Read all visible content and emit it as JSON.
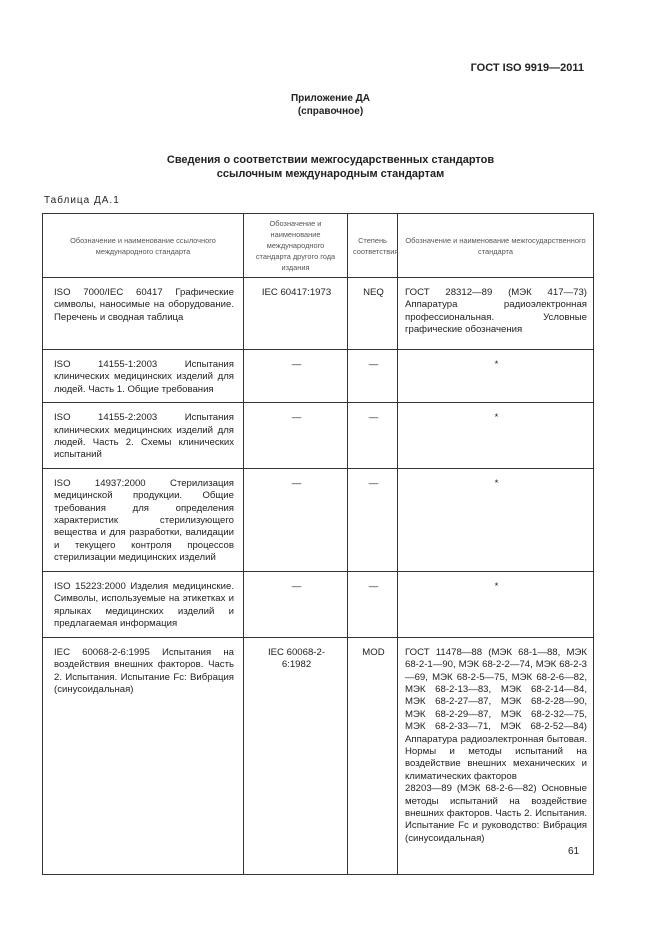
{
  "header": {
    "doc_id": "ГОСТ ISO 9919—2011"
  },
  "annex": {
    "title": "Приложение ДА",
    "subtitle": "(справочное)"
  },
  "title": {
    "line1": "Сведения о соответствии межгосударственных стандартов",
    "line2": "ссылочным международным стандартам"
  },
  "table_caption": "Таблица ДА.1",
  "table": {
    "columns": [
      "Обозначение и наименование ссылочного международного стандарта",
      "Обозначение и наименование международного стандарта другого года издания",
      "Степень соответствия",
      "Обозначение и наименование межгосударственного стандарта"
    ],
    "rows": [
      [
        "ISO 7000/IEC 60417 Графические символы, наносимые на оборудование. Перечень и сводная таблица",
        "IEC 60417:1973",
        "NEQ",
        "ГОСТ 28312—89 (МЭК 417—73) Аппаратура радиоэлектронная профессиональная. Условные графические обозначения"
      ],
      [
        "ISO 14155-1:2003 Испытания клинических медицинских изделий для людей. Часть 1. Общие требования",
        "—",
        "—",
        "*"
      ],
      [
        "ISO 14155-2:2003 Испытания клинических медицинских изделий для людей. Часть 2. Схемы клинических испытаний",
        "—",
        "—",
        "*"
      ],
      [
        "ISO 14937:2000 Стерилизация медицинской продукции. Общие требования для определения характеристик стерилизующего вещества и для разработки, валидации и текущего контроля процессов стерилизации медицинских изделий",
        "—",
        "—",
        "*"
      ],
      [
        "ISO 15223:2000 Изделия медицинские. Символы, используемые на этикетках и ярлыках медицинских изделий и предлагаемая информация",
        "—",
        "—",
        "*"
      ],
      [
        "IEC 60068-2-6:1995 Испытания на воздействия внешних факторов. Часть 2. Испытания. Испытание Fc: Вибрация (синусоидальная)",
        "IEC 60068-2-6:1982",
        "MOD",
        "ГОСТ 11478—88 (МЭК 68-1—88, МЭК 68-2-1—90, МЭК 68-2-2—74, МЭК 68-2-3—69, МЭК 68-2-5—75, МЭК 68-2-6—82, МЭК 68-2-13—83, МЭК 68-2-14—84, МЭК 68-2-27—87, МЭК 68-2-28—90, МЭК 68-2-29—87, МЭК 68-2-32—75, МЭК 68-2-33—71, МЭК 68-2-52—84) Аппаратура радиоэлектронная бытовая. Нормы и методы испытаний на воздействие внешних механических и климатических факторов\n28203—89 (МЭК 68-2-6—82) Основные методы испытаний на воздействие внешних факторов. Часть 2. Испытания. Испытание Fc и руководство: Вибрация (синусоидальная)"
      ]
    ]
  },
  "page_number": "61"
}
